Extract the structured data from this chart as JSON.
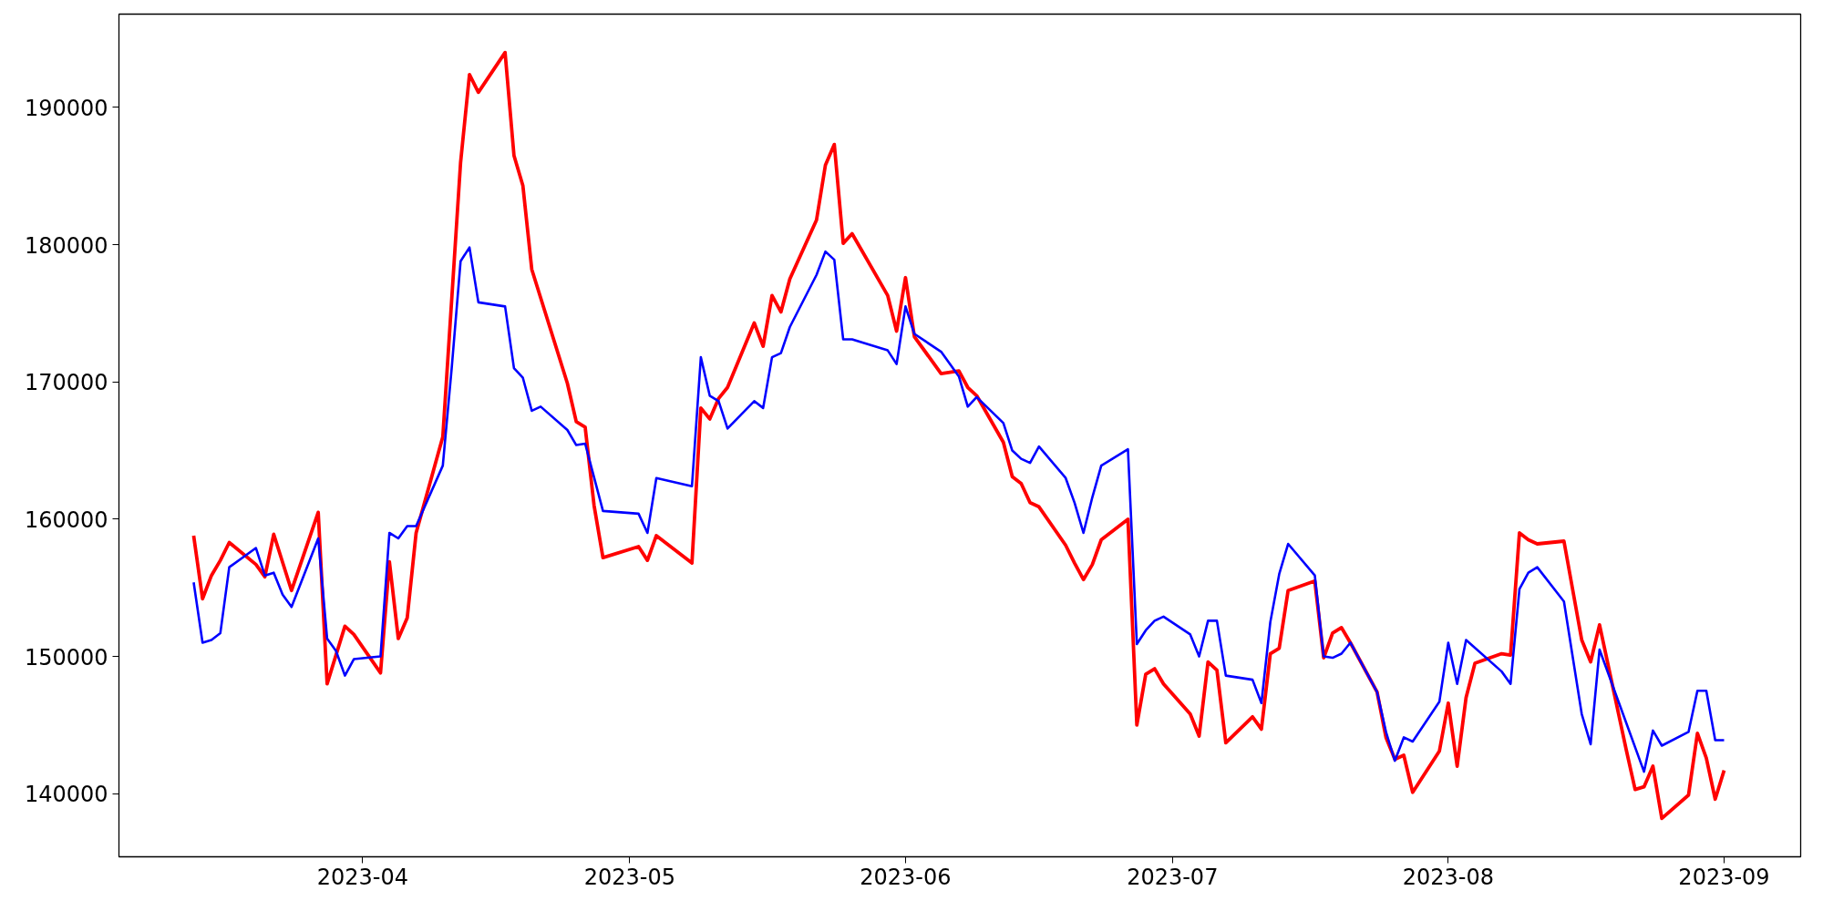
{
  "chart_data": {
    "type": "line",
    "xlim": [
      "2023-03-04T14:30",
      "2023-09-09T14:30"
    ],
    "ylim": [
      135400,
      196800
    ],
    "xticks": [
      {
        "value": "2023-04-01",
        "label": "2023-04"
      },
      {
        "value": "2023-05-01",
        "label": "2023-05"
      },
      {
        "value": "2023-06-01",
        "label": "2023-06"
      },
      {
        "value": "2023-07-01",
        "label": "2023-07"
      },
      {
        "value": "2023-08-01",
        "label": "2023-08"
      },
      {
        "value": "2023-09-01",
        "label": "2023-09"
      }
    ],
    "yticks": [
      140000,
      150000,
      160000,
      170000,
      180000,
      190000
    ],
    "marker": "none",
    "line_style": "solid",
    "series": [
      {
        "color": "#ff0000",
        "x": [
          "2023-03-13",
          "2023-03-14",
          "2023-03-15",
          "2023-03-16",
          "2023-03-17",
          "2023-03-20",
          "2023-03-21",
          "2023-03-22",
          "2023-03-24",
          "2023-03-27",
          "2023-03-28",
          "2023-03-30",
          "2023-03-31",
          "2023-04-03",
          "2023-04-04",
          "2023-04-05",
          "2023-04-06",
          "2023-04-07",
          "2023-04-10",
          "2023-04-11",
          "2023-04-12",
          "2023-04-13",
          "2023-04-14",
          "2023-04-17",
          "2023-04-18",
          "2023-04-19",
          "2023-04-20",
          "2023-04-24",
          "2023-04-25",
          "2023-04-26",
          "2023-04-27",
          "2023-04-28",
          "2023-05-02",
          "2023-05-03",
          "2023-05-04",
          "2023-05-08",
          "2023-05-09",
          "2023-05-10",
          "2023-05-11",
          "2023-05-12",
          "2023-05-15",
          "2023-05-16",
          "2023-05-17",
          "2023-05-18",
          "2023-05-19",
          "2023-05-22",
          "2023-05-23",
          "2023-05-24",
          "2023-05-25",
          "2023-05-26",
          "2023-05-30",
          "2023-05-31",
          "2023-06-01",
          "2023-06-02",
          "2023-06-05",
          "2023-06-07",
          "2023-06-08",
          "2023-06-09",
          "2023-06-12",
          "2023-06-13",
          "2023-06-14",
          "2023-06-15",
          "2023-06-16",
          "2023-06-19",
          "2023-06-20",
          "2023-06-21",
          "2023-06-22",
          "2023-06-23",
          "2023-06-26",
          "2023-06-27",
          "2023-06-28",
          "2023-06-29",
          "2023-06-30",
          "2023-07-03",
          "2023-07-04",
          "2023-07-05",
          "2023-07-06",
          "2023-07-07",
          "2023-07-10",
          "2023-07-11",
          "2023-07-12",
          "2023-07-13",
          "2023-07-14",
          "2023-07-17",
          "2023-07-18",
          "2023-07-19",
          "2023-07-20",
          "2023-07-21",
          "2023-07-24",
          "2023-07-25",
          "2023-07-26",
          "2023-07-27",
          "2023-07-28",
          "2023-07-31",
          "2023-08-01",
          "2023-08-02",
          "2023-08-03",
          "2023-08-04",
          "2023-08-07",
          "2023-08-08",
          "2023-08-09",
          "2023-08-10",
          "2023-08-11",
          "2023-08-14",
          "2023-08-16",
          "2023-08-17",
          "2023-08-18",
          "2023-08-21",
          "2023-08-22",
          "2023-08-23",
          "2023-08-24",
          "2023-08-25",
          "2023-08-28",
          "2023-08-29",
          "2023-08-30",
          "2023-08-31",
          "2023-09-01"
        ],
        "values": [
          158800,
          154200,
          155900,
          157000,
          158300,
          156700,
          155800,
          158900,
          154800,
          160500,
          148000,
          152200,
          151600,
          148800,
          156900,
          151300,
          152800,
          159000,
          166000,
          176000,
          186000,
          192400,
          191100,
          194000,
          186500,
          184300,
          178200,
          169900,
          167100,
          166700,
          161000,
          157200,
          158000,
          157000,
          158800,
          156800,
          168100,
          167300,
          168800,
          169600,
          174300,
          172600,
          176300,
          175100,
          177500,
          181800,
          185800,
          187300,
          180100,
          180800,
          176300,
          173700,
          177600,
          173300,
          170600,
          170800,
          169600,
          169000,
          165600,
          163100,
          162600,
          161200,
          160900,
          158100,
          156800,
          155600,
          156700,
          158500,
          160000,
          145000,
          148700,
          149100,
          148000,
          145800,
          144200,
          149600,
          149000,
          143700,
          145600,
          144700,
          150200,
          150600,
          154800,
          155500,
          149900,
          151700,
          152100,
          151000,
          147400,
          144100,
          142500,
          142800,
          140100,
          143100,
          146600,
          142000,
          147000,
          149500,
          150200,
          150100,
          159000,
          158500,
          158200,
          158400,
          151200,
          149600,
          152300,
          143200,
          140300,
          140500,
          142000,
          138200,
          139900,
          144400,
          142600,
          139600,
          141700
        ]
      },
      {
        "color": "#0000ff",
        "x": [
          "2023-03-13",
          "2023-03-14",
          "2023-03-15",
          "2023-03-16",
          "2023-03-17",
          "2023-03-20",
          "2023-03-21",
          "2023-03-22",
          "2023-03-23",
          "2023-03-24",
          "2023-03-27",
          "2023-03-28",
          "2023-03-29",
          "2023-03-30",
          "2023-03-31",
          "2023-04-03",
          "2023-04-04",
          "2023-04-05",
          "2023-04-06",
          "2023-04-07",
          "2023-04-10",
          "2023-04-11",
          "2023-04-12",
          "2023-04-13",
          "2023-04-14",
          "2023-04-17",
          "2023-04-18",
          "2023-04-19",
          "2023-04-20",
          "2023-04-21",
          "2023-04-24",
          "2023-04-25",
          "2023-04-26",
          "2023-04-28",
          "2023-05-02",
          "2023-05-03",
          "2023-05-04",
          "2023-05-08",
          "2023-05-09",
          "2023-05-10",
          "2023-05-11",
          "2023-05-12",
          "2023-05-15",
          "2023-05-16",
          "2023-05-17",
          "2023-05-18",
          "2023-05-19",
          "2023-05-22",
          "2023-05-23",
          "2023-05-24",
          "2023-05-25",
          "2023-05-26",
          "2023-05-30",
          "2023-05-31",
          "2023-06-01",
          "2023-06-02",
          "2023-06-05",
          "2023-06-07",
          "2023-06-08",
          "2023-06-09",
          "2023-06-12",
          "2023-06-13",
          "2023-06-14",
          "2023-06-15",
          "2023-06-16",
          "2023-06-19",
          "2023-06-20",
          "2023-06-21",
          "2023-06-22",
          "2023-06-23",
          "2023-06-26",
          "2023-06-27",
          "2023-06-28",
          "2023-06-29",
          "2023-06-30",
          "2023-07-03",
          "2023-07-04",
          "2023-07-05",
          "2023-07-06",
          "2023-07-07",
          "2023-07-10",
          "2023-07-11",
          "2023-07-12",
          "2023-07-13",
          "2023-07-14",
          "2023-07-17",
          "2023-07-18",
          "2023-07-19",
          "2023-07-20",
          "2023-07-21",
          "2023-07-24",
          "2023-07-25",
          "2023-07-26",
          "2023-07-27",
          "2023-07-28",
          "2023-07-31",
          "2023-08-01",
          "2023-08-02",
          "2023-08-03",
          "2023-08-07",
          "2023-08-08",
          "2023-08-09",
          "2023-08-10",
          "2023-08-11",
          "2023-08-14",
          "2023-08-16",
          "2023-08-17",
          "2023-08-18",
          "2023-08-23",
          "2023-08-24",
          "2023-08-25",
          "2023-08-28",
          "2023-08-29",
          "2023-08-30",
          "2023-08-31",
          "2023-09-01"
        ],
        "values": [
          155400,
          151000,
          151200,
          151700,
          156500,
          157900,
          155900,
          156100,
          154500,
          153600,
          158600,
          151300,
          150400,
          148600,
          149800,
          150000,
          159000,
          158600,
          159500,
          159500,
          163900,
          171000,
          178800,
          179800,
          175800,
          175500,
          171000,
          170300,
          167900,
          168200,
          166500,
          165400,
          165500,
          160600,
          160400,
          159000,
          163000,
          162400,
          171800,
          169000,
          168600,
          166600,
          168600,
          168100,
          171800,
          172100,
          174000,
          177800,
          179500,
          178900,
          173100,
          173100,
          172300,
          171300,
          175500,
          173500,
          172200,
          170400,
          168200,
          168900,
          167000,
          165000,
          164400,
          164100,
          165300,
          163000,
          161200,
          159000,
          161600,
          163900,
          165100,
          150900,
          151900,
          152600,
          152900,
          151600,
          150000,
          152600,
          152600,
          148600,
          148300,
          146600,
          152500,
          156000,
          158200,
          155900,
          150000,
          149900,
          150200,
          151000,
          147400,
          144500,
          142400,
          144100,
          143800,
          146700,
          151000,
          148000,
          151200,
          148900,
          148000,
          154900,
          156100,
          156500,
          154000,
          145800,
          143600,
          150500,
          141600,
          144600,
          143500,
          144500,
          147500,
          147500,
          143900,
          143900
        ]
      }
    ]
  }
}
